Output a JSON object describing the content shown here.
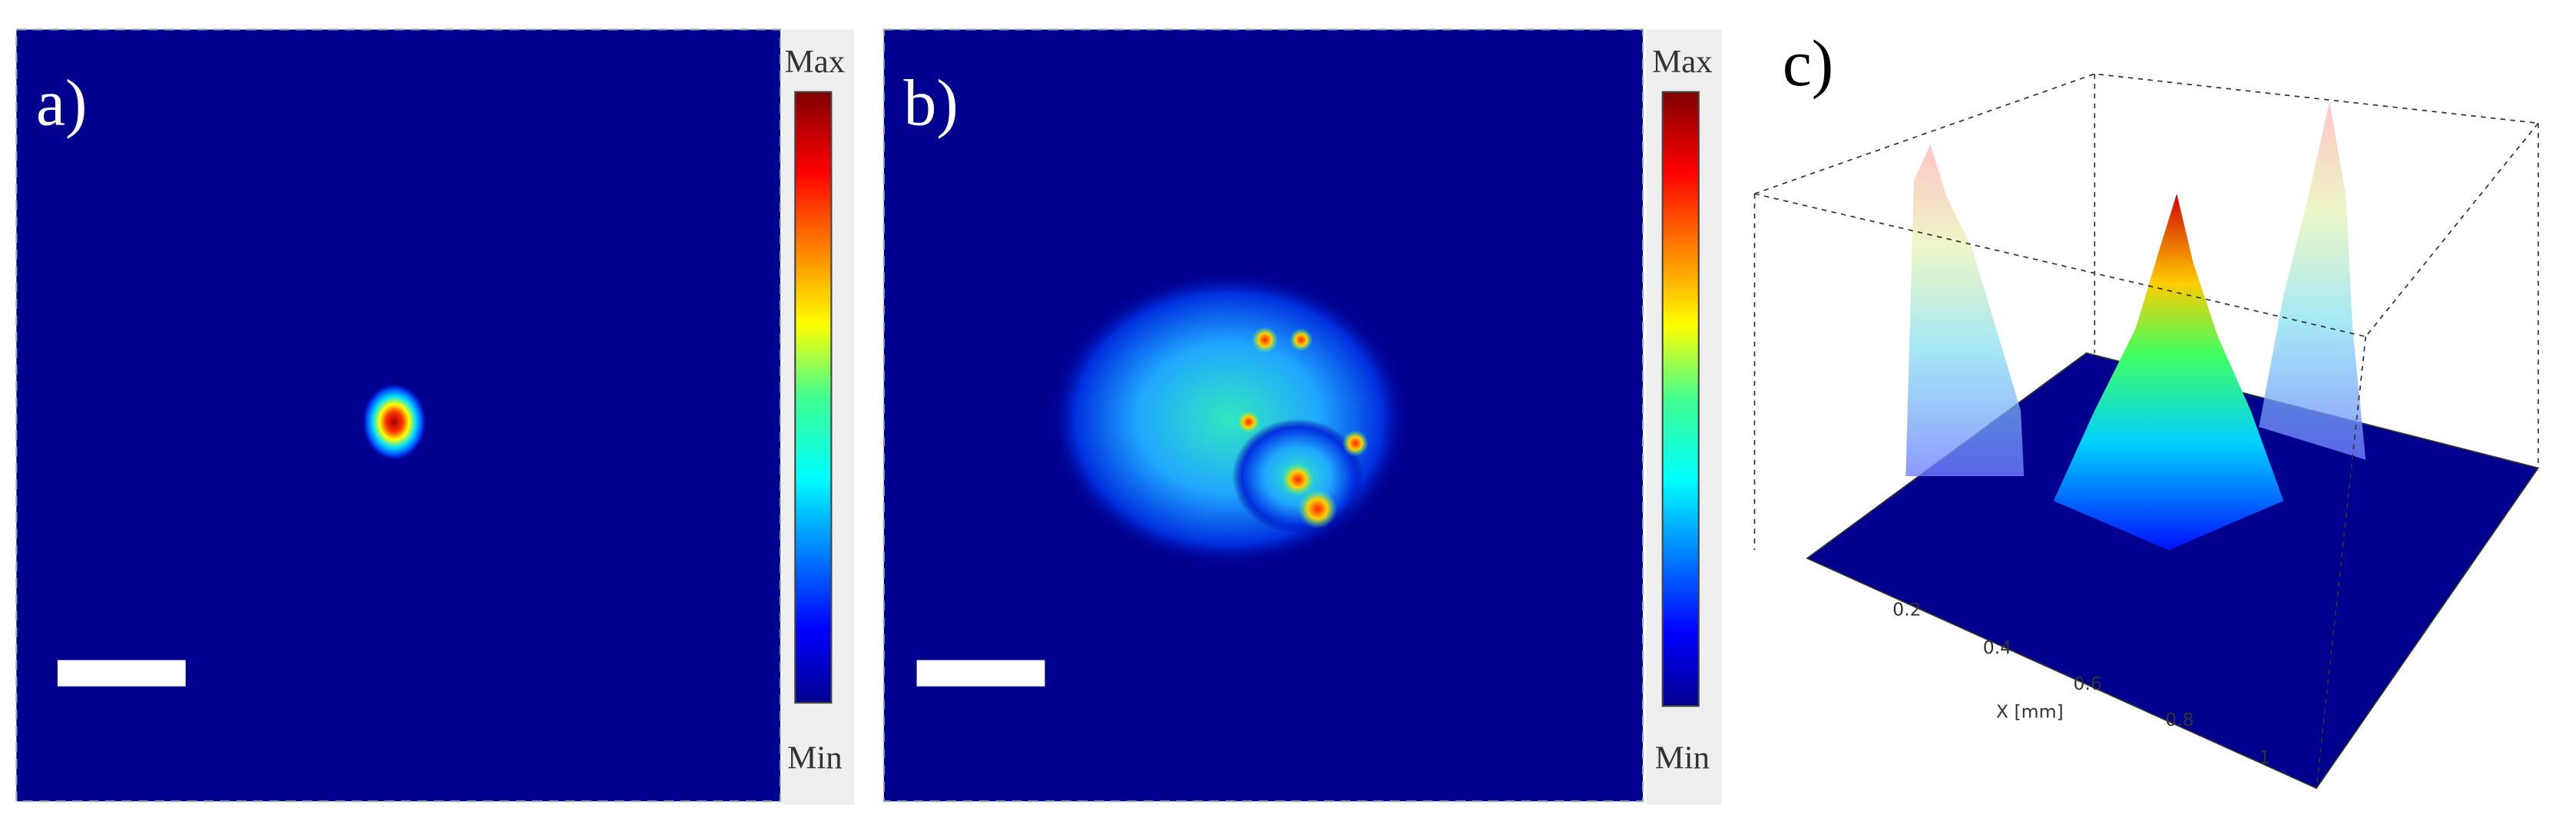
{
  "panels": [
    {
      "label": "a)",
      "colorbar": {
        "max": "Max",
        "min": "Min"
      }
    },
    {
      "label": "b)",
      "colorbar": {
        "max": "Max",
        "min": "Min"
      }
    },
    {
      "label": "c)",
      "x_axis": {
        "label": "X [mm]",
        "ticks": [
          "0.2",
          "0.4",
          "0.6",
          "0.8",
          "1"
        ]
      }
    }
  ]
}
